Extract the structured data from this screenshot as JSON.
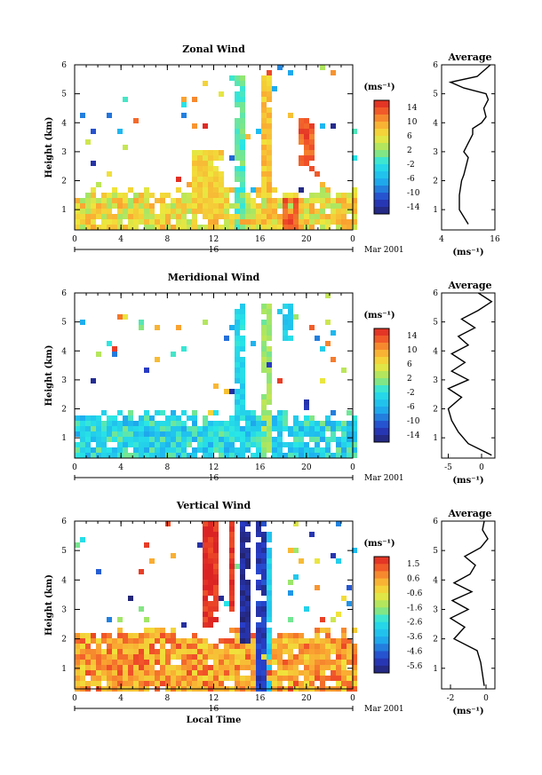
{
  "chart_data": [
    {
      "type": "heatmap",
      "title": "Zonal Wind",
      "ylabel": "Height (km)",
      "x_ticks": [
        "0",
        "4",
        "8",
        "12",
        "16",
        "20",
        "0"
      ],
      "y_ticks": [
        "1",
        "2",
        "3",
        "4",
        "5",
        "6"
      ],
      "xlim": [
        0,
        24
      ],
      "ylim": [
        0.3,
        6
      ],
      "date_center": "16",
      "date_label": "Mar 2001",
      "colorbar": {
        "unit": "(ms⁻¹)",
        "ticks": [
          "14",
          "10",
          "6",
          "2",
          "-2",
          "-6",
          "-10",
          "-14"
        ],
        "range": [
          -16,
          16
        ]
      },
      "bottom_regime": {
        "top_km": 1.5,
        "value": 6,
        "desc": "weak-wind low layer (2-10 ms-1)"
      },
      "features": [
        {
          "t0": 13.5,
          "t1": 14.5,
          "h0": 0.3,
          "h1": 5.8,
          "value": 0
        },
        {
          "t0": 16.0,
          "t1": 17.0,
          "h0": 0.3,
          "h1": 5.8,
          "value": 8
        },
        {
          "t0": 19.0,
          "t1": 20.5,
          "h0": 2.5,
          "h1": 4.2,
          "value": 13
        },
        {
          "t0": 17.5,
          "t1": 19.0,
          "h0": 0.3,
          "h1": 1.5,
          "value": 13
        },
        {
          "t0": 10.0,
          "t1": 12.5,
          "h0": 1.0,
          "h1": 3.2,
          "value": 7
        }
      ],
      "average_profile": {
        "title": "Average",
        "xlabel": "(ms⁻¹)",
        "x_ticks": [
          "4",
          "16"
        ],
        "xlim": [
          4,
          16
        ],
        "y_ticks": [
          "1",
          "2",
          "3",
          "4",
          "5",
          "6"
        ],
        "heights": [
          0.5,
          1.0,
          1.5,
          2.0,
          2.2,
          2.5,
          2.8,
          3.0,
          3.3,
          3.6,
          3.8,
          4.0,
          4.2,
          4.5,
          4.8,
          5.0,
          5.2,
          5.4,
          5.6,
          6.0
        ],
        "values": [
          10,
          8,
          8,
          8.5,
          9,
          9.5,
          10,
          9,
          10,
          11,
          11,
          13,
          14,
          13.5,
          14.5,
          14,
          9,
          6,
          12,
          15
        ]
      }
    },
    {
      "type": "heatmap",
      "title": "Meridional Wind",
      "ylabel": "Height (km)",
      "x_ticks": [
        "0",
        "4",
        "8",
        "12",
        "16",
        "20",
        "0"
      ],
      "y_ticks": [
        "1",
        "2",
        "3",
        "4",
        "5",
        "6"
      ],
      "xlim": [
        0,
        24
      ],
      "ylim": [
        0.3,
        6
      ],
      "date_center": "16",
      "date_label": "Mar 2001",
      "colorbar": {
        "unit": "(ms⁻¹)",
        "ticks": [
          "14",
          "10",
          "6",
          "2",
          "-2",
          "-6",
          "-10",
          "-14"
        ],
        "range": [
          -16,
          16
        ]
      },
      "bottom_regime": {
        "top_km": 1.6,
        "value": -3,
        "desc": "weak northerly low layer"
      },
      "features": [
        {
          "t0": 13.5,
          "t1": 14.5,
          "h0": 0.3,
          "h1": 5.8,
          "value": -3
        },
        {
          "t0": 16.0,
          "t1": 17.0,
          "h0": 0.3,
          "h1": 5.8,
          "value": 2
        },
        {
          "t0": 17.5,
          "t1": 18.5,
          "h0": 4.5,
          "h1": 5.8,
          "value": -4
        }
      ],
      "average_profile": {
        "title": "Average",
        "xlabel": "(ms⁻¹)",
        "x_ticks": [
          "-5",
          "0"
        ],
        "xlim": [
          -6,
          2
        ],
        "y_ticks": [
          "1",
          "2",
          "3",
          "4",
          "5",
          "6"
        ],
        "heights": [
          0.4,
          0.8,
          1.2,
          1.6,
          2.0,
          2.4,
          2.7,
          3.0,
          3.3,
          3.6,
          3.9,
          4.2,
          4.5,
          4.8,
          5.1,
          5.4,
          5.7,
          6.0
        ],
        "values": [
          1.5,
          -2,
          -3.5,
          -4.5,
          -5,
          -3,
          -5,
          -2,
          -4.5,
          -2.5,
          -4.5,
          -2,
          -3.5,
          -1,
          -3,
          -0.5,
          1.5,
          -0.5
        ]
      }
    },
    {
      "type": "heatmap",
      "title": "Vertical Wind",
      "ylabel": "Height (km)",
      "xlabel": "Local Time",
      "x_ticks": [
        "0",
        "4",
        "8",
        "12",
        "16",
        "20",
        "0"
      ],
      "y_ticks": [
        "1",
        "2",
        "3",
        "4",
        "5",
        "6"
      ],
      "xlim": [
        0,
        24
      ],
      "ylim": [
        0.3,
        6
      ],
      "date_center": "16",
      "date_label": "Mar 2001",
      "colorbar": {
        "unit": "(ms⁻¹)",
        "ticks": [
          "1.5",
          "0.6",
          "-0.6",
          "-1.6",
          "-2.6",
          "-3.6",
          "-4.6",
          "-5.6"
        ],
        "range": [
          -6,
          2
        ]
      },
      "bottom_regime": {
        "top_km": 2.0,
        "value": 0.5,
        "desc": "weak vertical motion low layer"
      },
      "features": [
        {
          "t0": 11.0,
          "t1": 12.0,
          "h0": 2.5,
          "h1": 6.0,
          "value": 1.8
        },
        {
          "t0": 13.2,
          "t1": 13.8,
          "h0": 3.0,
          "h1": 6.0,
          "value": 1.8
        },
        {
          "t0": 14.0,
          "t1": 15.0,
          "h0": 2.0,
          "h1": 6.0,
          "value": -5.5
        },
        {
          "t0": 15.5,
          "t1": 16.5,
          "h0": 0.3,
          "h1": 6.0,
          "value": -5.2
        },
        {
          "t0": 16.2,
          "t1": 16.8,
          "h0": 0.3,
          "h1": 6.0,
          "value": -3.0
        }
      ],
      "average_profile": {
        "title": "Average",
        "xlabel": "(ms⁻¹)",
        "x_ticks": [
          "-2",
          "0"
        ],
        "xlim": [
          -2.5,
          0.5
        ],
        "y_ticks": [
          "1",
          "2",
          "3",
          "4",
          "5",
          "6"
        ],
        "heights": [
          0.4,
          0.8,
          1.2,
          1.6,
          2.0,
          2.4,
          2.7,
          3.0,
          3.3,
          3.6,
          3.9,
          4.2,
          4.5,
          4.8,
          5.1,
          5.4,
          5.7,
          6.0
        ],
        "values": [
          -0.1,
          -0.2,
          -0.3,
          -0.5,
          -1.8,
          -1.2,
          -2.0,
          -1.0,
          -1.9,
          -0.8,
          -1.8,
          -0.9,
          -0.6,
          -1.2,
          -0.3,
          0.1,
          -0.2,
          -0.1
        ]
      }
    }
  ]
}
